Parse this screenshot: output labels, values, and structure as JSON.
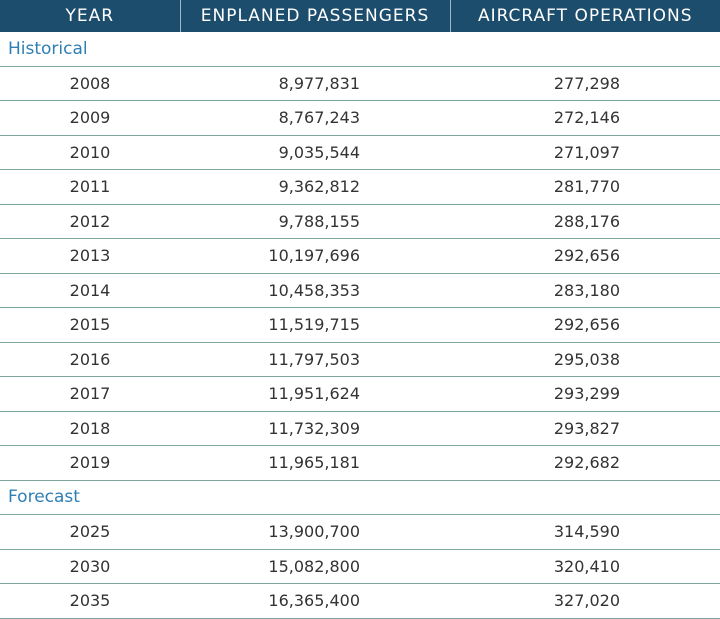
{
  "table": {
    "header": [
      "YEAR",
      "ENPLANED PASSENGERS",
      "AIRCRAFT OPERATIONS"
    ],
    "sections": [
      {
        "label": "Historical",
        "rows": [
          [
            "2008",
            "8,977,831",
            "277,298"
          ],
          [
            "2009",
            "8,767,243",
            "272,146"
          ],
          [
            "2010",
            "9,035,544",
            "271,097"
          ],
          [
            "2011",
            "9,362,812",
            "281,770"
          ],
          [
            "2012",
            "9,788,155",
            "288,176"
          ],
          [
            "2013",
            "10,197,696",
            "292,656"
          ],
          [
            "2014",
            "10,458,353",
            "283,180"
          ],
          [
            "2015",
            "11,519,715",
            "292,656"
          ],
          [
            "2016",
            "11,797,503",
            "295,038"
          ],
          [
            "2017",
            "11,951,624",
            "293,299"
          ],
          [
            "2018",
            "11,732,309",
            "293,827"
          ],
          [
            "2019",
            "11,965,181",
            "292,682"
          ]
        ]
      },
      {
        "label": "Forecast",
        "rows": [
          [
            "2025",
            "13,900,700",
            "314,590"
          ],
          [
            "2030",
            "15,082,800",
            "320,410"
          ],
          [
            "2035",
            "16,365,400",
            "327,020"
          ]
        ]
      }
    ]
  }
}
